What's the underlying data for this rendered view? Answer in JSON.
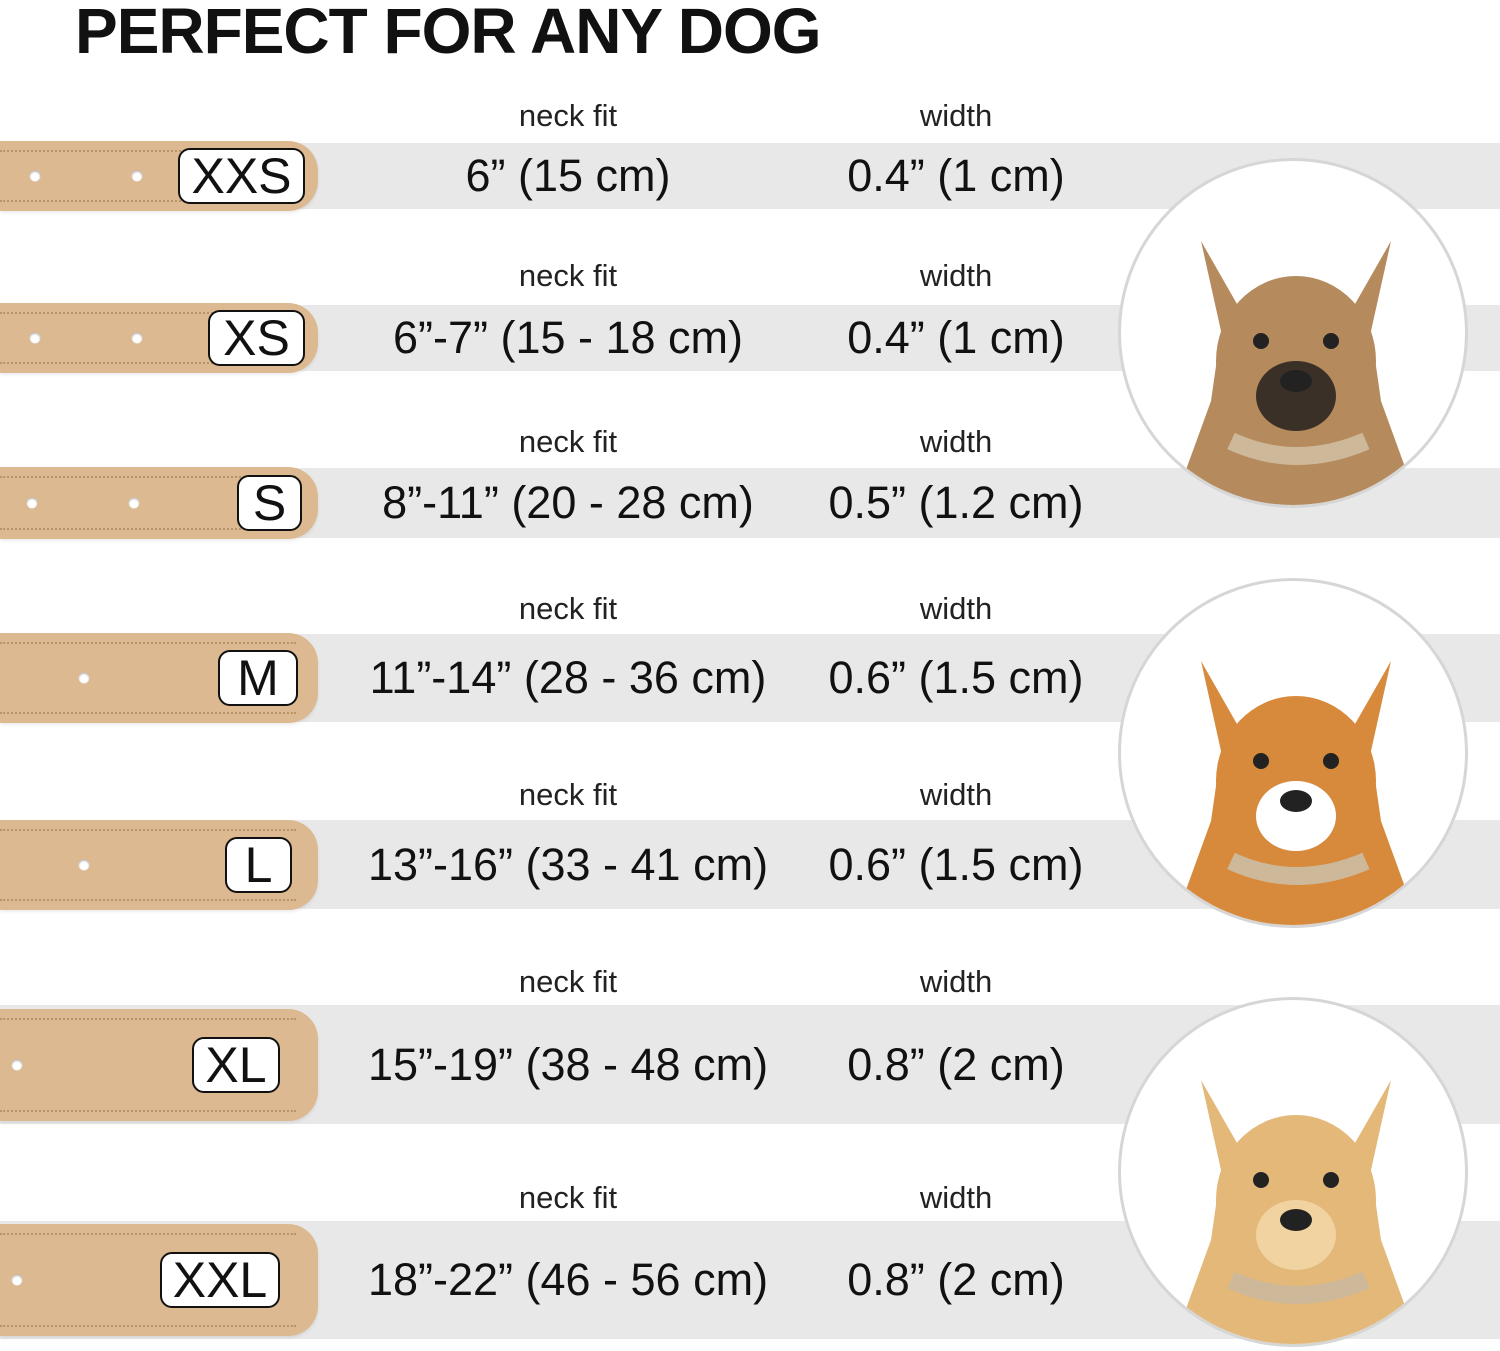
{
  "title": "PERFECT FOR ANY DOG",
  "neck_fit_label": "neck fit",
  "width_label": "width",
  "colors": {
    "collar": "#dcb990",
    "band": "#e8e8e8"
  },
  "sizes": [
    {
      "size": "XXS",
      "neck_fit": "6” (15 cm)",
      "width": "0.4” (1 cm)"
    },
    {
      "size": "XS",
      "neck_fit": "6”-7” (15 - 18 cm)",
      "width": "0.4” (1 cm)"
    },
    {
      "size": "S",
      "neck_fit": "8”-11” (20 - 28 cm)",
      "width": "0.5” (1.2 cm)"
    },
    {
      "size": "M",
      "neck_fit": "11”-14” (28 - 36 cm)",
      "width": "0.6” (1.5 cm)"
    },
    {
      "size": "L",
      "neck_fit": "13”-16” (33 - 41 cm)",
      "width": "0.6” (1.5 cm)"
    },
    {
      "size": "XL",
      "neck_fit": "15”-19” (38 - 48 cm)",
      "width": "0.8” (2 cm)"
    },
    {
      "size": "XXL",
      "neck_fit": "18”-22” (46 - 56 cm)",
      "width": "0.8” (2 cm)"
    }
  ],
  "dog_photos": [
    "small terrier wearing collar",
    "corgi wearing collar",
    "labrador wearing collar"
  ]
}
